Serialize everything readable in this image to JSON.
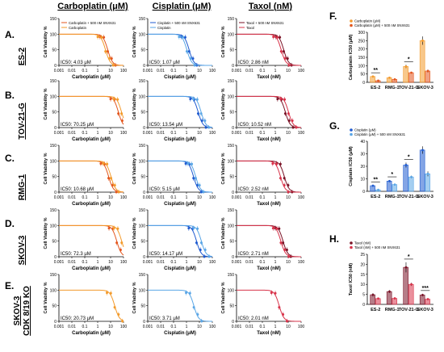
{
  "column_headers": [
    {
      "label": "Carboplatin (",
      "mu": "μ",
      "tail": "M)"
    },
    {
      "label": "Cisplatin (",
      "mu": "μ",
      "tail": "M)"
    },
    {
      "label": "Taxol (",
      "mu": "",
      "tail": "nM)"
    }
  ],
  "row_labels": [
    {
      "letter": "A.",
      "name": "ES-2",
      "name2": ""
    },
    {
      "letter": "B.",
      "name": "TOV-21-G",
      "name2": ""
    },
    {
      "letter": "C.",
      "name": "RMG-1",
      "name2": ""
    },
    {
      "letter": "D.",
      "name": "SKOV-3",
      "name2": ""
    },
    {
      "letter": "E.",
      "name": "SKOV-3",
      "name2": "CDK 8/19 KO"
    }
  ],
  "colors": {
    "carbo_ctrl": "#f39a2b",
    "carbo_combo": "#e3561e",
    "cis_ctrl": "#5aa6e6",
    "cis_combo": "#1f5bd0",
    "tax_ctrl": "#d8334a",
    "tax_combo": "#7a1226"
  },
  "chart_data": [
    {
      "type": "line",
      "row": 0,
      "col": 0,
      "xlabel": "Carboplatin (μM)",
      "ylabel": "Cell Viability %",
      "xlim": [
        0.001,
        100
      ],
      "ylim": [
        0,
        150
      ],
      "x_scale": "log",
      "x_ticks": [
        "0.001",
        "0.01",
        "0.1",
        "1",
        "10",
        "100"
      ],
      "y_ticks": [
        "0",
        "50",
        "100",
        "150"
      ],
      "ic50_label": "IC50: 4.03 μM",
      "ic50": 4.03,
      "combo_ic50": 6,
      "series": [
        {
          "name": "Carboplatin + 500 nM SNX631",
          "style": "combo"
        },
        {
          "name": "Carboplatin",
          "style": "ctrl"
        }
      ]
    },
    {
      "type": "line",
      "row": 0,
      "col": 1,
      "xlabel": "Cisplatin (μM)",
      "ylabel": "Cell Viability %",
      "xlim": [
        0.001,
        100
      ],
      "ylim": [
        0,
        150
      ],
      "x_scale": "log",
      "x_ticks": [
        "0.001",
        "0.01",
        "0.1",
        "1",
        "10",
        "100"
      ],
      "y_ticks": [
        "0",
        "50",
        "100",
        "150"
      ],
      "ic50_label": "IC50: 1.07 μM",
      "ic50": 1.07,
      "combo_ic50": 1.6,
      "series": [
        {
          "name": "Cisplatin + 500 nM SNX631",
          "style": "combo"
        },
        {
          "name": "Cisplatin",
          "style": "ctrl"
        }
      ]
    },
    {
      "type": "line",
      "row": 0,
      "col": 2,
      "xlabel": "Taxol (nM)",
      "ylabel": "Cell Viability %",
      "xlim": [
        0.001,
        100
      ],
      "ylim": [
        0,
        150
      ],
      "x_scale": "log",
      "x_ticks": [
        "0.001",
        "0.01",
        "0.1",
        "1",
        "10",
        "100"
      ],
      "y_ticks": [
        "0",
        "50",
        "100",
        "150"
      ],
      "ic50_label": "IC50: 2.86 nM",
      "ic50": 2.86,
      "combo_ic50": 4.5,
      "series": [
        {
          "name": "Taxol + 500 nM SNX631",
          "style": "combo"
        },
        {
          "name": "Taxol",
          "style": "ctrl"
        }
      ]
    },
    {
      "type": "line",
      "row": 1,
      "col": 0,
      "xlabel": "Carboplatin (μM)",
      "ylabel": "Cell Viability %",
      "xlim": [
        0.001,
        100
      ],
      "ylim": [
        0,
        150
      ],
      "x_scale": "log",
      "x_ticks": [
        "0.001",
        "0.01",
        "0.1",
        "1",
        "10",
        "100"
      ],
      "y_ticks": [
        "0",
        "50",
        "100",
        "150"
      ],
      "ic50_label": "IC50: 70.25 μM",
      "ic50": 70.25,
      "combo_ic50": 40
    },
    {
      "type": "line",
      "row": 1,
      "col": 1,
      "xlabel": "Cisplatin (μM)",
      "ylabel": "Cell Viability %",
      "xlim": [
        0.001,
        100
      ],
      "ylim": [
        0,
        150
      ],
      "x_scale": "log",
      "x_ticks": [
        "0.001",
        "0.01",
        "0.1",
        "1",
        "10",
        "100"
      ],
      "y_ticks": [
        "0",
        "50",
        "100",
        "150"
      ],
      "ic50_label": "IC50: 13.54 μM",
      "ic50": 13.54,
      "combo_ic50": 8
    },
    {
      "type": "line",
      "row": 1,
      "col": 2,
      "xlabel": "Taxol (nM)",
      "ylabel": "Cell Viability %",
      "xlim": [
        0.001,
        100
      ],
      "ylim": [
        0,
        150
      ],
      "x_scale": "log",
      "x_ticks": [
        "0.001",
        "0.01",
        "0.1",
        "1",
        "10",
        "100"
      ],
      "y_ticks": [
        "0",
        "50",
        "100",
        "150"
      ],
      "ic50_label": "IC50: 10.52 nM",
      "ic50": 10.52,
      "combo_ic50": 6
    },
    {
      "type": "line",
      "row": 2,
      "col": 0,
      "xlabel": "Carboplatin (μM)",
      "ylabel": "Cell Viability %",
      "xlim": [
        0.001,
        100
      ],
      "ylim": [
        0,
        150
      ],
      "x_scale": "log",
      "x_ticks": [
        "0.001",
        "0.01",
        "0.1",
        "1",
        "10",
        "100"
      ],
      "y_ticks": [
        "0",
        "50",
        "100",
        "150"
      ],
      "ic50_label": "IC50: 10.68 μM",
      "ic50": 10.68,
      "combo_ic50": 7
    },
    {
      "type": "line",
      "row": 2,
      "col": 1,
      "xlabel": "Cisplatin (μM)",
      "ylabel": "Cell Viability %",
      "xlim": [
        0.001,
        100
      ],
      "ylim": [
        0,
        150
      ],
      "x_scale": "log",
      "x_ticks": [
        "0.001",
        "0.01",
        "0.1",
        "1",
        "10",
        "100"
      ],
      "y_ticks": [
        "0",
        "50",
        "100",
        "150"
      ],
      "ic50_label": "IC50: 5.15 μM",
      "ic50": 5.15,
      "combo_ic50": 3.5
    },
    {
      "type": "line",
      "row": 2,
      "col": 2,
      "xlabel": "Taxol (nM)",
      "ylabel": "Cell Viability %",
      "xlim": [
        0.001,
        100
      ],
      "ylim": [
        0,
        150
      ],
      "x_scale": "log",
      "x_ticks": [
        "0.001",
        "0.01",
        "0.1",
        "1",
        "10",
        "100"
      ],
      "y_ticks": [
        "0",
        "50",
        "100",
        "150"
      ],
      "ic50_label": "IC50: 2.52 nM",
      "ic50": 2.52,
      "combo_ic50": 5
    },
    {
      "type": "line",
      "row": 3,
      "col": 0,
      "xlabel": "Carboplatin (μM)",
      "ylabel": "Cell Viability %",
      "xlim": [
        0.001,
        100
      ],
      "ylim": [
        0,
        150
      ],
      "x_scale": "log",
      "x_ticks": [
        "0.001",
        "0.01",
        "0.1",
        "1",
        "10",
        "100"
      ],
      "y_ticks": [
        "0",
        "50",
        "100",
        "150"
      ],
      "ic50_label": "IC50: 72.3 μM",
      "ic50": 72.3,
      "combo_ic50": 30
    },
    {
      "type": "line",
      "row": 3,
      "col": 1,
      "xlabel": "Cisplatin (μM)",
      "ylabel": "Cell Viability %",
      "xlim": [
        0.001,
        100
      ],
      "ylim": [
        0,
        150
      ],
      "x_scale": "log",
      "x_ticks": [
        "0.001",
        "0.01",
        "0.1",
        "1",
        "10",
        "100"
      ],
      "y_ticks": [
        "0",
        "50",
        "100",
        "150"
      ],
      "ic50_label": "IC50: 14.17 μM",
      "ic50": 14.17,
      "combo_ic50": 6
    },
    {
      "type": "line",
      "row": 3,
      "col": 2,
      "xlabel": "Taxol (nM)",
      "ylabel": "Cell Viability %",
      "xlim": [
        0.001,
        100
      ],
      "ylim": [
        0,
        150
      ],
      "x_scale": "log",
      "x_ticks": [
        "0.001",
        "0.01",
        "0.1",
        "1",
        "10",
        "100"
      ],
      "y_ticks": [
        "0",
        "50",
        "100",
        "150"
      ],
      "ic50_label": "IC50: 2.71 nM",
      "ic50": 2.71,
      "combo_ic50": 4
    },
    {
      "type": "line",
      "row": 4,
      "col": 0,
      "xlabel": "Carboplatin (μM)",
      "ylabel": "Cell Viability %",
      "xlim": [
        0.001,
        100
      ],
      "ylim": [
        0,
        150
      ],
      "x_scale": "log",
      "x_ticks": [
        "0.001",
        "0.01",
        "0.1",
        "1",
        "10",
        "100"
      ],
      "y_ticks": [
        "0",
        "50",
        "100",
        "150"
      ],
      "ic50_label": "IC50: 20.73 μM",
      "ic50": 20.73,
      "combo_ic50": null
    },
    {
      "type": "line",
      "row": 4,
      "col": 1,
      "xlabel": "Cisplatin (μM)",
      "ylabel": "Cell Viability %",
      "xlim": [
        0.001,
        100
      ],
      "ylim": [
        0,
        150
      ],
      "x_scale": "log",
      "x_ticks": [
        "0.001",
        "0.01",
        "0.1",
        "1",
        "10",
        "100"
      ],
      "y_ticks": [
        "0",
        "50",
        "100",
        "150"
      ],
      "ic50_label": "IC50: 3.71 μM",
      "ic50": 3.71,
      "combo_ic50": null
    },
    {
      "type": "line",
      "row": 4,
      "col": 2,
      "xlabel": "Taxol (nM)",
      "ylabel": "Cell Viability %",
      "xlim": [
        0.001,
        100
      ],
      "ylim": [
        0,
        150
      ],
      "x_scale": "log",
      "x_ticks": [
        "0.001",
        "0.01",
        "0.1",
        "1",
        "10",
        "100"
      ],
      "y_ticks": [
        "0",
        "50",
        "100",
        "150"
      ],
      "ic50_label": "IC50: 2.01 nM",
      "ic50": 2.01,
      "combo_ic50": null
    },
    {
      "type": "bar",
      "panel": "F",
      "ylabel": "Carboplatin IC50 (μM)",
      "ylim": [
        0,
        300
      ],
      "y_ticks": [
        "0",
        "50",
        "100",
        "150",
        "200",
        "250",
        "300"
      ],
      "categories": [
        "ES-2",
        "RMG-1",
        "TOV-21-G",
        "SKOV-3"
      ],
      "series": [
        {
          "name": "Carboplatin (μM)",
          "values": [
            35,
            28,
            95,
            250
          ],
          "errors": [
            3,
            3,
            10,
            25
          ],
          "style": "ctrl"
        },
        {
          "name": "Carboplatin (μM) + 500 nM SNX631",
          "values": [
            10,
            18,
            58,
            68
          ],
          "errors": [
            2,
            2,
            5,
            8
          ],
          "style": "combo"
        }
      ],
      "significance": [
        "**",
        "",
        "*",
        ""
      ]
    },
    {
      "type": "bar",
      "panel": "G",
      "ylabel": "Cisplatin IC50 (μM)",
      "ylim": [
        0,
        40
      ],
      "y_ticks": [
        "0",
        "10",
        "20",
        "30",
        "40"
      ],
      "categories": [
        "ES-2",
        "RMG-1",
        "TOV-21-G",
        "SKOV-3"
      ],
      "series": [
        {
          "name": "Cisplatin (μM)",
          "values": [
            4.5,
            8.2,
            21,
            33
          ],
          "errors": [
            0.5,
            0.8,
            2,
            3
          ],
          "style": "combo"
        },
        {
          "name": "Cisplatin (μM) + 500 nM SNX631",
          "values": [
            1.2,
            5.4,
            11.5,
            14
          ],
          "errors": [
            0.3,
            0.5,
            1,
            2
          ],
          "style": "ctrl"
        }
      ],
      "significance": [
        "**",
        "*",
        "*",
        ""
      ]
    },
    {
      "type": "bar",
      "panel": "H",
      "ylabel": "Taxol IC50 (nM)",
      "ylim": [
        0,
        25
      ],
      "y_ticks": [
        "0",
        "5",
        "10",
        "15",
        "20",
        "25"
      ],
      "categories": [
        "ES-2",
        "RMG-1",
        "TOV-21-G",
        "SKOV-3"
      ],
      "series": [
        {
          "name": "Taxol (nM)",
          "values": [
            4.8,
            6.4,
            18.5,
            4.7
          ],
          "errors": [
            0.8,
            0.7,
            2.5,
            0.6
          ],
          "style": "combo"
        },
        {
          "name": "Taxol (nM) + 500 nM SNX631",
          "values": [
            2.9,
            3.0,
            10.0,
            2.6
          ],
          "errors": [
            0.4,
            0.3,
            0.8,
            0.3
          ],
          "style": "ctrl"
        }
      ],
      "significance": [
        "",
        "",
        "*",
        "***"
      ]
    }
  ]
}
